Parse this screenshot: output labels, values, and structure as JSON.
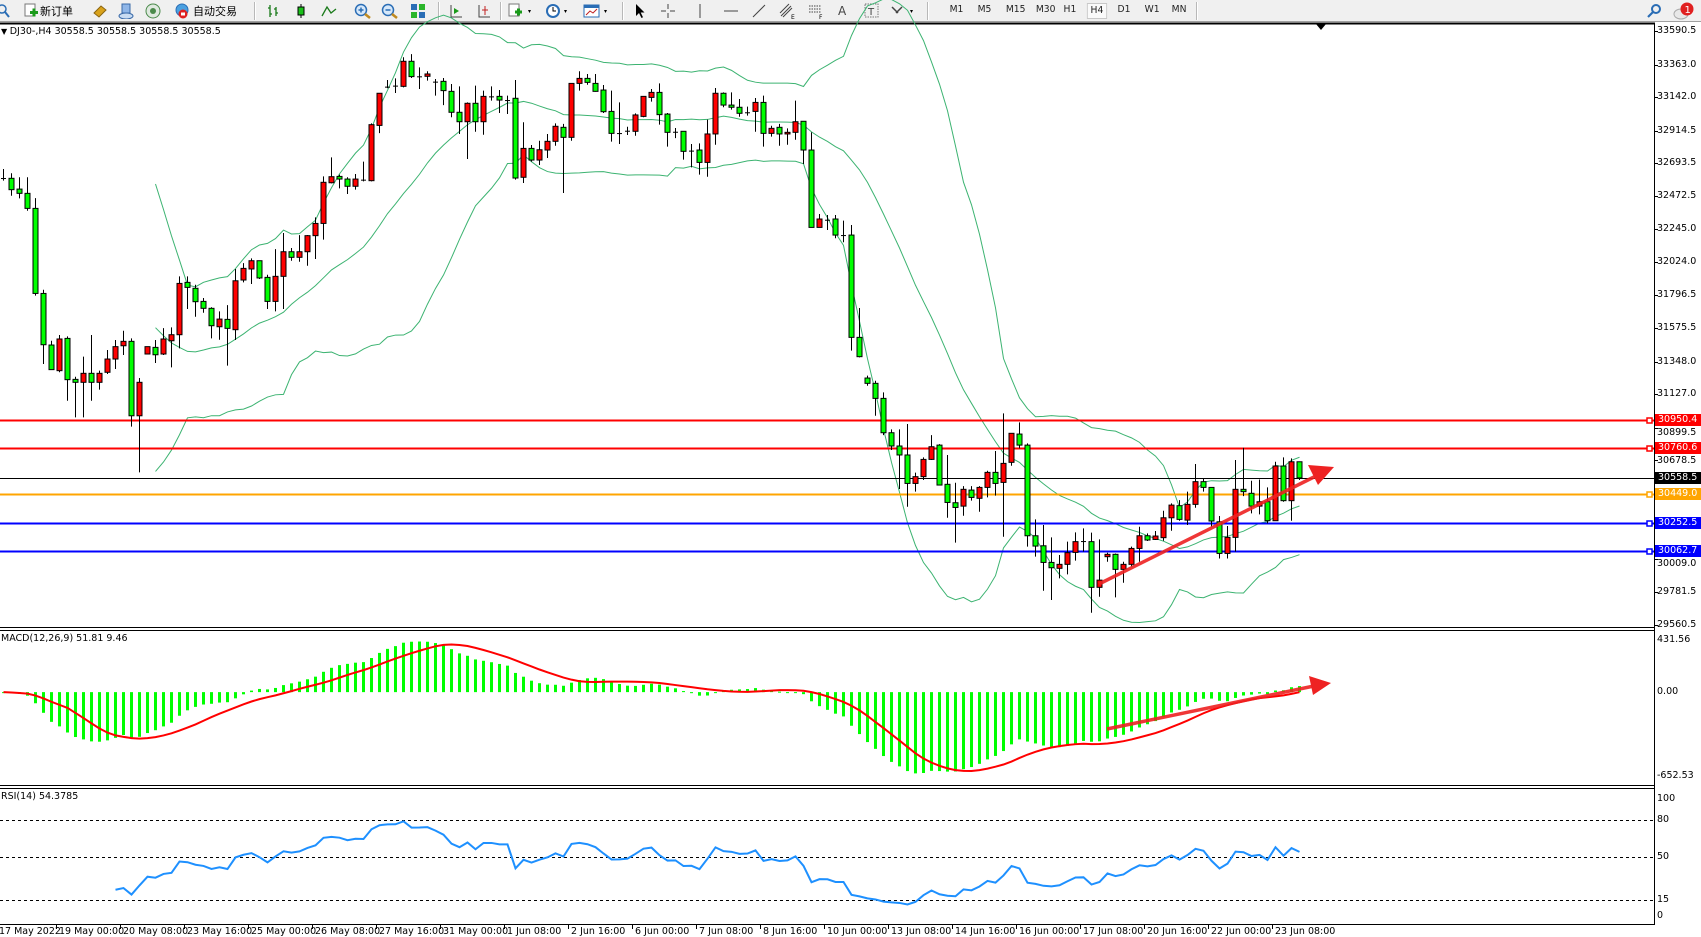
{
  "toolbar": {
    "new_order_label": "新订单",
    "auto_trading_label": "自动交易",
    "timeframes": [
      "M1",
      "M5",
      "M15",
      "M30",
      "H1",
      "H4",
      "D1",
      "W1",
      "MN"
    ],
    "active_timeframe": "H4",
    "notification_count": "1"
  },
  "chart": {
    "header": "DJ30-,H4  30558.5 30558.5 30558.5 30558.5",
    "colors": {
      "bull": "#ff0000",
      "bear": "#00ff00",
      "bands": "#3cb371",
      "rsi": "#1e90ff",
      "signal": "#ff0000"
    }
  },
  "chart_data": {
    "type": "candlestick",
    "symbol": "DJ30-",
    "timeframe": "H4",
    "ylim": [
      29560.5,
      33590.5
    ],
    "price_ticks": [
      "33590.5",
      "33363.0",
      "33142.0",
      "32914.5",
      "32693.5",
      "32472.5",
      "32245.0",
      "32024.0",
      "31796.5",
      "31575.5",
      "31348.0",
      "31127.0",
      "30899.5",
      "30678.5",
      "30009.0",
      "29781.5",
      "29560.5"
    ],
    "time_ticks": [
      "17 May 2022",
      "19 May 00:00",
      "20 May 08:00",
      "23 May 16:00",
      "25 May 00:00",
      "26 May 08:00",
      "27 May 16:00",
      "31 May 00:00",
      "1 Jun 08:00",
      "2 Jun 16:00",
      "6 Jun 00:00",
      "7 Jun 08:00",
      "8 Jun 16:00",
      "10 Jun 00:00",
      "13 Jun 08:00",
      "14 Jun 16:00",
      "16 Jun 00:00",
      "17 Jun 08:00",
      "20 Jun 16:00",
      "22 Jun 00:00",
      "23 Jun 08:00"
    ],
    "ohlc": [
      [
        32593,
        32654,
        32575,
        32593
      ],
      [
        32591,
        32625,
        32473,
        32514
      ],
      [
        32518,
        32598,
        32455,
        32489
      ],
      [
        32489,
        32598,
        32371,
        32387
      ],
      [
        32387,
        32457,
        31795,
        31810
      ],
      [
        31810,
        31835,
        31331,
        31462
      ],
      [
        31460,
        31489,
        31293,
        31293
      ],
      [
        31286,
        31528,
        31275,
        31501
      ],
      [
        31505,
        31519,
        31082,
        31225
      ],
      [
        31227,
        31245,
        30969,
        31207
      ],
      [
        31207,
        31381,
        30969,
        31268
      ],
      [
        31268,
        31528,
        31082,
        31207
      ],
      [
        31207,
        31286,
        31157,
        31268
      ],
      [
        31275,
        31426,
        31263,
        31365
      ],
      [
        31365,
        31494,
        31297,
        31449
      ],
      [
        31455,
        31557,
        31392,
        31485
      ],
      [
        31485,
        31505,
        30906,
        30980
      ],
      [
        30980,
        31236,
        30596,
        31207
      ],
      [
        31399,
        31449,
        31399,
        31449
      ],
      [
        31444,
        31494,
        31338,
        31394
      ],
      [
        31399,
        31575,
        31392,
        31501
      ],
      [
        31489,
        31580,
        31308,
        31530
      ],
      [
        31530,
        31926,
        31437,
        31878
      ],
      [
        31885,
        31926,
        31704,
        31851
      ],
      [
        31845,
        31869,
        31652,
        31754
      ],
      [
        31756,
        31779,
        31679,
        31709
      ],
      [
        31709,
        31716,
        31505,
        31591
      ],
      [
        31584,
        31688,
        31496,
        31636
      ],
      [
        31634,
        31731,
        31320,
        31573
      ],
      [
        31564,
        31976,
        31494,
        31896
      ],
      [
        31901,
        32016,
        31885,
        31980
      ],
      [
        31976,
        32048,
        31874,
        32032
      ],
      [
        32032,
        32032,
        31908,
        31915
      ],
      [
        31919,
        31937,
        31704,
        31756
      ],
      [
        31756,
        32111,
        31688,
        31926
      ],
      [
        31926,
        32220,
        31704,
        32093
      ],
      [
        32093,
        32118,
        32032,
        32055
      ],
      [
        32055,
        32206,
        32025,
        32093
      ],
      [
        32093,
        32206,
        31998,
        32202
      ],
      [
        32202,
        32326,
        32044,
        32285
      ],
      [
        32285,
        32604,
        32175,
        32564
      ],
      [
        32561,
        32733,
        32557,
        32602
      ],
      [
        32604,
        32616,
        32523,
        32586
      ],
      [
        32586,
        32598,
        32485,
        32537
      ],
      [
        32537,
        32620,
        32514,
        32586
      ],
      [
        32582,
        32704,
        32570,
        32582
      ],
      [
        32575,
        32964,
        32570,
        32955
      ],
      [
        32950,
        33168,
        32898,
        33168
      ],
      [
        33213,
        33258,
        33202,
        33213
      ],
      [
        33220,
        33269,
        33170,
        33220
      ],
      [
        33215,
        33412,
        33208,
        33385
      ],
      [
        33385,
        33434,
        33272,
        33281
      ],
      [
        33283,
        33344,
        33197,
        33283
      ],
      [
        33283,
        33317,
        33254,
        33299
      ],
      [
        33247,
        33265,
        33152,
        33247
      ],
      [
        33249,
        33272,
        33088,
        33186
      ],
      [
        33181,
        33231,
        33005,
        33039
      ],
      [
        33039,
        33215,
        32892,
        32975
      ],
      [
        32975,
        33106,
        32722,
        33100
      ],
      [
        33100,
        33220,
        32907,
        32975
      ],
      [
        32975,
        33186,
        32887,
        33147
      ],
      [
        33147,
        33215,
        33118,
        33147
      ],
      [
        33147,
        33190,
        33034,
        33122
      ],
      [
        33122,
        33152,
        33027,
        33122
      ],
      [
        33134,
        33258,
        32582,
        32593
      ],
      [
        32598,
        32971,
        32559,
        32794
      ],
      [
        32794,
        32817,
        32704,
        32715
      ],
      [
        32715,
        32846,
        32681,
        32785
      ],
      [
        32783,
        32892,
        32729,
        32842
      ],
      [
        32842,
        32964,
        32812,
        32944
      ],
      [
        32937,
        32960,
        32491,
        32869
      ],
      [
        32869,
        33235,
        32846,
        33235
      ],
      [
        33235,
        33317,
        33186,
        33269
      ],
      [
        33269,
        33299,
        33226,
        33242
      ],
      [
        33235,
        33299,
        33179,
        33181
      ],
      [
        33190,
        33224,
        33034,
        33043
      ],
      [
        33045,
        33186,
        32840,
        32896
      ],
      [
        32898,
        33106,
        32824,
        32898
      ],
      [
        32914,
        32941,
        32885,
        32914
      ],
      [
        32910,
        33032,
        32880,
        33021
      ],
      [
        33011,
        33147,
        33005,
        33147
      ],
      [
        33140,
        33197,
        33111,
        33174
      ],
      [
        33174,
        33235,
        32955,
        33023
      ],
      [
        33027,
        33034,
        32806,
        32903
      ],
      [
        32907,
        32932,
        32864,
        32907
      ],
      [
        32910,
        32910,
        32718,
        32774
      ],
      [
        32779,
        32824,
        32665,
        32779
      ],
      [
        32783,
        32828,
        32616,
        32699
      ],
      [
        32699,
        32989,
        32602,
        32892
      ],
      [
        32892,
        33204,
        32819,
        33168
      ],
      [
        33168,
        33174,
        33073,
        33088
      ],
      [
        33088,
        33174,
        33057,
        33073
      ],
      [
        33073,
        33129,
        33009,
        33032
      ],
      [
        33039,
        33077,
        33016,
        33039
      ],
      [
        33045,
        33136,
        32907,
        33106
      ],
      [
        33106,
        33152,
        32806,
        32896
      ],
      [
        32896,
        32948,
        32874,
        32930
      ],
      [
        32937,
        32960,
        32812,
        32892
      ],
      [
        32892,
        32930,
        32819,
        32903
      ],
      [
        32903,
        33118,
        32853,
        32975
      ],
      [
        32978,
        32978,
        32688,
        32783
      ],
      [
        32783,
        32903,
        32258,
        32258
      ],
      [
        32258,
        32349,
        32258,
        32315
      ],
      [
        32310,
        32342,
        32240,
        32310
      ],
      [
        32315,
        32342,
        32184,
        32206
      ],
      [
        32206,
        32304,
        32157,
        32206
      ],
      [
        32206,
        32274,
        31422,
        31512
      ],
      [
        31512,
        31711,
        31376,
        31381
      ],
      [
        31236,
        31252,
        31184,
        31200
      ],
      [
        31200,
        31218,
        30980,
        31098
      ],
      [
        31098,
        31139,
        30849,
        30865
      ],
      [
        30865,
        30888,
        30748,
        30775
      ],
      [
        30775,
        30888,
        30483,
        30714
      ],
      [
        30714,
        30924,
        30363,
        30521
      ],
      [
        30521,
        30594,
        30465,
        30567
      ],
      [
        30567,
        30698,
        30544,
        30684
      ],
      [
        30684,
        30849,
        30680,
        30770
      ],
      [
        30781,
        30788,
        30510,
        30510
      ],
      [
        30515,
        30714,
        30288,
        30392
      ],
      [
        30390,
        30526,
        30119,
        30358
      ],
      [
        30367,
        30503,
        30302,
        30481
      ],
      [
        30476,
        30503,
        30404,
        30426
      ],
      [
        30420,
        30503,
        30329,
        30494
      ],
      [
        30494,
        30607,
        30426,
        30596
      ],
      [
        30596,
        30741,
        30438,
        30521
      ],
      [
        30528,
        30996,
        30159,
        30657
      ],
      [
        30664,
        30861,
        30641,
        30861
      ],
      [
        30856,
        30935,
        30759,
        30781
      ],
      [
        30781,
        30793,
        30092,
        30166
      ],
      [
        30166,
        30277,
        30024,
        30096
      ],
      [
        30098,
        30239,
        29793,
        29985
      ],
      [
        29985,
        30155,
        29730,
        29949
      ],
      [
        29945,
        30035,
        29877,
        29972
      ],
      [
        29972,
        30126,
        29904,
        30051
      ],
      [
        30053,
        30189,
        29997,
        30126
      ],
      [
        30130,
        30216,
        30058,
        30130
      ],
      [
        30126,
        30187,
        29644,
        29816
      ],
      [
        29816,
        30141,
        29752,
        29865
      ],
      [
        30024,
        30051,
        29990,
        30040
      ],
      [
        30040,
        30046,
        29748,
        29938
      ],
      [
        29938,
        29990,
        29847,
        29972
      ],
      [
        29972,
        30092,
        29956,
        30080
      ],
      [
        30080,
        30227,
        29990,
        30166
      ],
      [
        30166,
        30182,
        30130,
        30137
      ],
      [
        30141,
        30198,
        30137,
        30164
      ],
      [
        30153,
        30336,
        30132,
        30288
      ],
      [
        30288,
        30386,
        30200,
        30374
      ],
      [
        30370,
        30408,
        30268,
        30277
      ],
      [
        30272,
        30465,
        30239,
        30379
      ],
      [
        30379,
        30653,
        30356,
        30533
      ],
      [
        30533,
        30555,
        30465,
        30494
      ],
      [
        30494,
        30494,
        30227,
        30266
      ],
      [
        30261,
        30300,
        30012,
        30046
      ],
      [
        30046,
        30232,
        30012,
        30155
      ],
      [
        30155,
        30680,
        30058,
        30481
      ],
      [
        30481,
        30763,
        30435,
        30465
      ],
      [
        30454,
        30539,
        30318,
        30367
      ],
      [
        30367,
        30548,
        30311,
        30397
      ],
      [
        30397,
        30494,
        30250,
        30268
      ],
      [
        30268,
        30668,
        30268,
        30639
      ],
      [
        30639,
        30698,
        30397,
        30404
      ],
      [
        30404,
        30691,
        30268,
        30668
      ],
      [
        30668,
        30668,
        30544,
        30558.5
      ]
    ],
    "levels": [
      {
        "price": "30950.4",
        "color": "#ff0000"
      },
      {
        "price": "30760.6",
        "color": "#ff0000"
      },
      {
        "price": "30558.5",
        "color": "#000000"
      },
      {
        "price": "30449.0",
        "color": "#ffa500"
      },
      {
        "price": "30252.5",
        "color": "#0000ff"
      },
      {
        "price": "30062.7",
        "color": "#0000ff"
      }
    ],
    "indicators": {
      "bollinger": {
        "period": 20,
        "deviation": 2
      },
      "macd": {
        "label": "MACD(12,26,9) 51.81 9.46",
        "ylim": [
          -652.53,
          431.56
        ],
        "ticks": [
          "431.56",
          "0.00",
          "-652.53"
        ]
      },
      "rsi": {
        "label": "RSI(14) 54.3785",
        "ylim": [
          0,
          100
        ],
        "ticks": [
          "100",
          "80",
          "50",
          "15",
          "0"
        ],
        "levels": [
          80,
          50,
          15
        ]
      }
    }
  }
}
